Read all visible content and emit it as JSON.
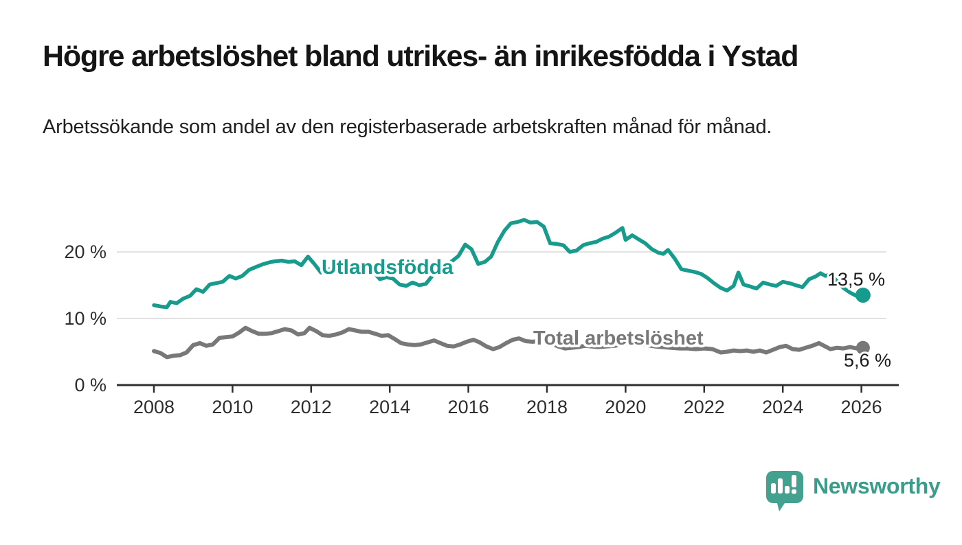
{
  "header": {
    "title": "Högre arbetslöshet bland utrikes- än inrikesfödda i Ystad",
    "subtitle": "Arbetssökande som andel av den registerbaserade arbetskraften månad för månad."
  },
  "chart_data": {
    "type": "line",
    "title": "Högre arbetslöshet bland utrikes- än inrikesfödda i Ystad",
    "unit": "%",
    "grid": "horizontal-only",
    "legend_position": "inline-labels-on-lines",
    "x_axis": {
      "ticks": [
        2008,
        2010,
        2012,
        2014,
        2016,
        2018,
        2020,
        2022,
        2024,
        2026
      ],
      "tick_labels": [
        "2008",
        "2010",
        "2012",
        "2014",
        "2016",
        "2018",
        "2020",
        "2022",
        "2024",
        "2026"
      ],
      "range": [
        2007.05,
        2026.95
      ]
    },
    "y_axis": {
      "ticks": [
        0,
        10,
        20
      ],
      "tick_labels": [
        "0 %",
        "10 %",
        "20 %"
      ],
      "range": [
        0,
        27
      ]
    },
    "series": [
      {
        "name": "Utlandsfödda",
        "color": "#169b8d",
        "end_label": "13,5 %",
        "end_value": 13.5,
        "points": [
          [
            2008.0,
            12.0
          ],
          [
            2008.17,
            11.8
          ],
          [
            2008.33,
            11.7
          ],
          [
            2008.42,
            12.5
          ],
          [
            2008.58,
            12.3
          ],
          [
            2008.75,
            13.0
          ],
          [
            2008.92,
            13.4
          ],
          [
            2009.08,
            14.4
          ],
          [
            2009.25,
            14.0
          ],
          [
            2009.42,
            15.1
          ],
          [
            2009.58,
            15.3
          ],
          [
            2009.75,
            15.5
          ],
          [
            2009.92,
            16.4
          ],
          [
            2010.08,
            16.0
          ],
          [
            2010.25,
            16.4
          ],
          [
            2010.42,
            17.3
          ],
          [
            2010.58,
            17.7
          ],
          [
            2010.75,
            18.1
          ],
          [
            2010.92,
            18.4
          ],
          [
            2011.08,
            18.6
          ],
          [
            2011.25,
            18.7
          ],
          [
            2011.42,
            18.5
          ],
          [
            2011.58,
            18.6
          ],
          [
            2011.75,
            18.0
          ],
          [
            2011.92,
            19.3
          ],
          [
            2012.08,
            18.2
          ],
          [
            2012.25,
            16.9
          ],
          [
            2012.42,
            17.3
          ],
          [
            2012.58,
            17.7
          ],
          [
            2012.75,
            17.9
          ],
          [
            2012.92,
            18.1
          ],
          [
            2013.08,
            18.0
          ],
          [
            2013.25,
            17.8
          ],
          [
            2013.42,
            17.4
          ],
          [
            2013.58,
            17.0
          ],
          [
            2013.75,
            15.9
          ],
          [
            2013.92,
            16.2
          ],
          [
            2014.08,
            16.0
          ],
          [
            2014.25,
            15.1
          ],
          [
            2014.42,
            14.9
          ],
          [
            2014.58,
            15.4
          ],
          [
            2014.75,
            15.0
          ],
          [
            2014.92,
            15.2
          ],
          [
            2015.08,
            16.4
          ],
          [
            2015.25,
            17.2
          ],
          [
            2015.42,
            18.0
          ],
          [
            2015.58,
            18.6
          ],
          [
            2015.75,
            19.4
          ],
          [
            2015.92,
            21.1
          ],
          [
            2016.08,
            20.4
          ],
          [
            2016.25,
            18.2
          ],
          [
            2016.42,
            18.5
          ],
          [
            2016.58,
            19.3
          ],
          [
            2016.75,
            21.5
          ],
          [
            2016.92,
            23.2
          ],
          [
            2017.08,
            24.3
          ],
          [
            2017.25,
            24.5
          ],
          [
            2017.42,
            24.8
          ],
          [
            2017.58,
            24.4
          ],
          [
            2017.75,
            24.5
          ],
          [
            2017.92,
            23.8
          ],
          [
            2018.08,
            21.3
          ],
          [
            2018.25,
            21.2
          ],
          [
            2018.42,
            21.0
          ],
          [
            2018.58,
            20.0
          ],
          [
            2018.75,
            20.2
          ],
          [
            2018.92,
            21.0
          ],
          [
            2019.08,
            21.3
          ],
          [
            2019.25,
            21.5
          ],
          [
            2019.42,
            22.0
          ],
          [
            2019.58,
            22.3
          ],
          [
            2019.75,
            22.9
          ],
          [
            2019.92,
            23.6
          ],
          [
            2020.0,
            21.8
          ],
          [
            2020.17,
            22.5
          ],
          [
            2020.33,
            21.9
          ],
          [
            2020.5,
            21.3
          ],
          [
            2020.67,
            20.4
          ],
          [
            2020.83,
            19.9
          ],
          [
            2020.96,
            19.7
          ],
          [
            2021.08,
            20.3
          ],
          [
            2021.25,
            19.0
          ],
          [
            2021.42,
            17.4
          ],
          [
            2021.58,
            17.2
          ],
          [
            2021.75,
            17.0
          ],
          [
            2021.92,
            16.7
          ],
          [
            2022.08,
            16.1
          ],
          [
            2022.25,
            15.3
          ],
          [
            2022.42,
            14.6
          ],
          [
            2022.58,
            14.2
          ],
          [
            2022.75,
            14.9
          ],
          [
            2022.87,
            16.9
          ],
          [
            2023.0,
            15.1
          ],
          [
            2023.17,
            14.8
          ],
          [
            2023.33,
            14.5
          ],
          [
            2023.5,
            15.4
          ],
          [
            2023.67,
            15.1
          ],
          [
            2023.83,
            14.9
          ],
          [
            2024.0,
            15.5
          ],
          [
            2024.17,
            15.3
          ],
          [
            2024.33,
            15.0
          ],
          [
            2024.5,
            14.7
          ],
          [
            2024.67,
            15.9
          ],
          [
            2024.83,
            16.3
          ],
          [
            2024.96,
            16.8
          ],
          [
            2025.08,
            16.4
          ],
          [
            2025.21,
            16.6
          ],
          [
            2025.38,
            15.6
          ],
          [
            2025.54,
            14.6
          ],
          [
            2025.71,
            13.9
          ],
          [
            2025.87,
            13.4
          ],
          [
            2026.04,
            13.5
          ]
        ]
      },
      {
        "name": "Total arbetslöshet",
        "color": "#787878",
        "end_label": "5,6 %",
        "end_value": 5.6,
        "points": [
          [
            2008.0,
            5.1
          ],
          [
            2008.17,
            4.8
          ],
          [
            2008.33,
            4.2
          ],
          [
            2008.5,
            4.4
          ],
          [
            2008.67,
            4.5
          ],
          [
            2008.83,
            4.9
          ],
          [
            2009.0,
            6.0
          ],
          [
            2009.17,
            6.3
          ],
          [
            2009.33,
            5.9
          ],
          [
            2009.5,
            6.1
          ],
          [
            2009.67,
            7.1
          ],
          [
            2009.83,
            7.2
          ],
          [
            2010.0,
            7.3
          ],
          [
            2010.17,
            7.9
          ],
          [
            2010.33,
            8.6
          ],
          [
            2010.5,
            8.1
          ],
          [
            2010.67,
            7.7
          ],
          [
            2010.83,
            7.7
          ],
          [
            2011.0,
            7.8
          ],
          [
            2011.17,
            8.1
          ],
          [
            2011.33,
            8.4
          ],
          [
            2011.5,
            8.2
          ],
          [
            2011.67,
            7.6
          ],
          [
            2011.83,
            7.8
          ],
          [
            2011.96,
            8.6
          ],
          [
            2012.13,
            8.1
          ],
          [
            2012.29,
            7.5
          ],
          [
            2012.46,
            7.4
          ],
          [
            2012.63,
            7.6
          ],
          [
            2012.79,
            7.9
          ],
          [
            2012.96,
            8.4
          ],
          [
            2013.13,
            8.2
          ],
          [
            2013.29,
            8.0
          ],
          [
            2013.46,
            8.0
          ],
          [
            2013.63,
            7.7
          ],
          [
            2013.79,
            7.4
          ],
          [
            2013.96,
            7.5
          ],
          [
            2014.13,
            6.9
          ],
          [
            2014.29,
            6.3
          ],
          [
            2014.46,
            6.1
          ],
          [
            2014.63,
            6.0
          ],
          [
            2014.79,
            6.1
          ],
          [
            2014.96,
            6.4
          ],
          [
            2015.13,
            6.7
          ],
          [
            2015.29,
            6.3
          ],
          [
            2015.46,
            5.9
          ],
          [
            2015.63,
            5.8
          ],
          [
            2015.79,
            6.1
          ],
          [
            2015.96,
            6.5
          ],
          [
            2016.13,
            6.8
          ],
          [
            2016.29,
            6.4
          ],
          [
            2016.46,
            5.8
          ],
          [
            2016.63,
            5.4
          ],
          [
            2016.79,
            5.7
          ],
          [
            2016.96,
            6.3
          ],
          [
            2017.13,
            6.8
          ],
          [
            2017.29,
            7.0
          ],
          [
            2017.46,
            6.6
          ],
          [
            2017.63,
            6.5
          ],
          [
            2017.79,
            6.6
          ],
          [
            2017.96,
            6.5
          ],
          [
            2018.13,
            6.2
          ],
          [
            2018.29,
            5.8
          ],
          [
            2018.46,
            5.5
          ],
          [
            2018.63,
            5.6
          ],
          [
            2018.79,
            5.7
          ],
          [
            2018.96,
            5.9
          ],
          [
            2019.13,
            5.8
          ],
          [
            2019.29,
            5.7
          ],
          [
            2019.5,
            5.8
          ],
          [
            2019.71,
            5.9
          ],
          [
            2019.92,
            6.1
          ],
          [
            2020.13,
            6.3
          ],
          [
            2020.33,
            6.2
          ],
          [
            2020.54,
            6.0
          ],
          [
            2020.75,
            5.8
          ],
          [
            2020.96,
            5.7
          ],
          [
            2021.17,
            5.6
          ],
          [
            2021.38,
            5.5
          ],
          [
            2021.58,
            5.5
          ],
          [
            2021.79,
            5.4
          ],
          [
            2022.0,
            5.5
          ],
          [
            2022.21,
            5.4
          ],
          [
            2022.42,
            4.9
          ],
          [
            2022.58,
            5.0
          ],
          [
            2022.75,
            5.2
          ],
          [
            2022.92,
            5.1
          ],
          [
            2023.08,
            5.2
          ],
          [
            2023.25,
            5.0
          ],
          [
            2023.42,
            5.2
          ],
          [
            2023.58,
            4.9
          ],
          [
            2023.75,
            5.3
          ],
          [
            2023.92,
            5.7
          ],
          [
            2024.08,
            5.9
          ],
          [
            2024.25,
            5.4
          ],
          [
            2024.42,
            5.3
          ],
          [
            2024.58,
            5.6
          ],
          [
            2024.75,
            5.9
          ],
          [
            2024.92,
            6.3
          ],
          [
            2025.08,
            5.8
          ],
          [
            2025.21,
            5.4
          ],
          [
            2025.38,
            5.6
          ],
          [
            2025.54,
            5.5
          ],
          [
            2025.71,
            5.7
          ],
          [
            2025.88,
            5.5
          ],
          [
            2026.04,
            5.6
          ]
        ]
      }
    ]
  },
  "footer": {
    "brand": "Newsworthy",
    "logo_color": "#45a18f"
  }
}
